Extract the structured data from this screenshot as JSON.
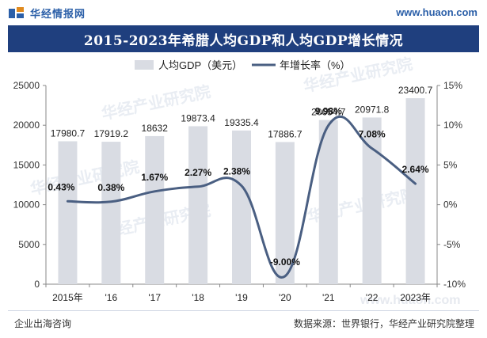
{
  "header": {
    "logo_text": "华经情报网",
    "site_url": "www.huaon.com"
  },
  "footer": {
    "left_text": "企业出海咨询",
    "right_text": "数据来源：世界银行，华经产业研究院整理"
  },
  "watermarks": [
    "华经产业研究院",
    "华经产业研究院",
    "华经产业研究院",
    "华经产业研究院",
    "华经产业研究院"
  ],
  "watermark_bottom": "www.huaon.com",
  "colors": {
    "header_blue": "#1f3f7e",
    "bar": "#d9dce3",
    "line": "#4a5f82",
    "grid": "#e6e8ec"
  },
  "chart_data": {
    "type": "bar+line",
    "title": "2015-2023年希腊人均GDP和人均GDP增长情况",
    "categories": [
      "2015年",
      "'16",
      "'17",
      "'18",
      "'19",
      "'20",
      "'21",
      "'22",
      "2023年"
    ],
    "series": [
      {
        "name": "人均GDP（美元）",
        "type": "bar",
        "axis": "left",
        "values": [
          17980.7,
          17919.2,
          18632,
          19873.4,
          19335.4,
          17886.7,
          20654.7,
          20971.8,
          23400.7
        ],
        "labels": [
          "17980.7",
          "17919.2",
          "18632",
          "19873.4",
          "19335.4",
          "17886.7",
          "20654.7",
          "20971.8",
          "23400.7"
        ]
      },
      {
        "name": "年增长率（%）",
        "type": "line",
        "axis": "right",
        "values": [
          0.43,
          0.38,
          1.67,
          2.27,
          2.38,
          -9.0,
          9.98,
          7.08,
          2.64
        ],
        "labels": [
          "0.43%",
          "0.38%",
          "1.67%",
          "2.27%",
          "2.38%",
          "-9.00%",
          "9.98%",
          "7.08%",
          "2.64%"
        ]
      }
    ],
    "y_left": {
      "min": 0,
      "max": 25000,
      "ticks": [
        0,
        5000,
        10000,
        15000,
        20000,
        25000
      ],
      "tick_labels": [
        "0",
        "5000",
        "10000",
        "15000",
        "20000",
        "25000"
      ]
    },
    "y_right": {
      "min": -10,
      "max": 15,
      "ticks": [
        -10,
        -5,
        0,
        5,
        10,
        15
      ],
      "tick_labels": [
        "-10%",
        "-5%",
        "0%",
        "5%",
        "10%",
        "15%"
      ]
    },
    "legend_position": "top-center",
    "grid": false
  }
}
